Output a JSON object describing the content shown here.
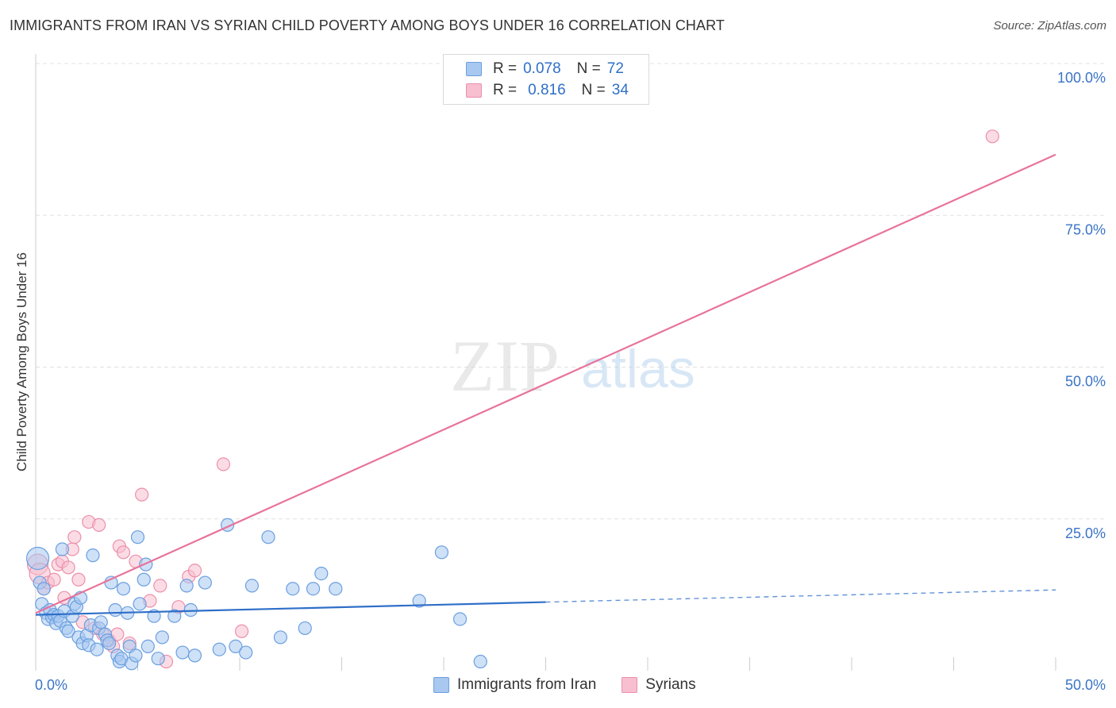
{
  "header": {
    "title": "IMMIGRANTS FROM IRAN VS SYRIAN CHILD POVERTY AMONG BOYS UNDER 16 CORRELATION CHART",
    "source": "Source: ZipAtlas.com"
  },
  "watermark": {
    "zip": "ZIP",
    "atlas": "atlas"
  },
  "colors": {
    "blue_fill": "#a8c8f0",
    "blue_stroke": "#6a9fe0",
    "blue_line": "#2f6fc8",
    "pink_fill": "#f7bfd0",
    "pink_stroke": "#ec8fab",
    "pink_line": "#e8739a",
    "grid": "#e0e0e0",
    "tick_label": "#3a74c6"
  },
  "legend": {
    "series": [
      {
        "r_label": "R =",
        "r_value": "0.078",
        "n_label": "N =",
        "n_value": "72"
      },
      {
        "r_label": "R =",
        "r_value": "0.816",
        "n_label": "N =",
        "n_value": "34"
      }
    ]
  },
  "chart_data": {
    "type": "scatter",
    "title": "IMMIGRANTS FROM IRAN VS SYRIAN CHILD POVERTY AMONG BOYS UNDER 16 CORRELATION CHART",
    "xlabel": "",
    "ylabel": "Child Poverty Among Boys Under 16",
    "xlim": [
      0,
      50
    ],
    "ylim": [
      0,
      100
    ],
    "x_tick_labels": [
      {
        "value": 0,
        "label": "0.0%"
      },
      {
        "value": 50,
        "label": "50.0%"
      }
    ],
    "y_tick_labels": [
      {
        "value": 25,
        "label": "25.0%"
      },
      {
        "value": 50,
        "label": "50.0%"
      },
      {
        "value": 75,
        "label": "75.0%"
      },
      {
        "value": 100,
        "label": "100.0%"
      }
    ],
    "series": [
      {
        "name": "Immigrants from Iran",
        "r": 0.078,
        "n": 72,
        "trend": {
          "solid": [
            [
              0,
              9.2
            ],
            [
              25,
              11.3
            ]
          ],
          "dashed": [
            [
              25,
              11.3
            ],
            [
              50,
              13.3
            ]
          ]
        },
        "points": [
          [
            0.1,
            18.5
          ],
          [
            0.2,
            14.5
          ],
          [
            0.3,
            11.0
          ],
          [
            0.4,
            13.5
          ],
          [
            0.5,
            9.5
          ],
          [
            0.6,
            8.5
          ],
          [
            0.7,
            10.0
          ],
          [
            0.8,
            8.8
          ],
          [
            0.9,
            9.2
          ],
          [
            1.0,
            7.8
          ],
          [
            1.1,
            9.0
          ],
          [
            1.2,
            8.2
          ],
          [
            1.3,
            20.0
          ],
          [
            1.4,
            9.8
          ],
          [
            1.5,
            7.0
          ],
          [
            1.6,
            6.5
          ],
          [
            1.8,
            9.0
          ],
          [
            1.9,
            11.0
          ],
          [
            2.0,
            10.5
          ],
          [
            2.1,
            5.5
          ],
          [
            2.2,
            12.0
          ],
          [
            2.3,
            4.5
          ],
          [
            2.5,
            5.8
          ],
          [
            2.6,
            4.2
          ],
          [
            2.7,
            7.5
          ],
          [
            2.8,
            19.0
          ],
          [
            3.0,
            3.5
          ],
          [
            3.1,
            7.0
          ],
          [
            3.2,
            8.0
          ],
          [
            3.4,
            6.0
          ],
          [
            3.5,
            5.0
          ],
          [
            3.6,
            4.5
          ],
          [
            3.7,
            14.5
          ],
          [
            3.9,
            10.0
          ],
          [
            4.0,
            2.5
          ],
          [
            4.1,
            1.5
          ],
          [
            4.2,
            2.0
          ],
          [
            4.3,
            13.5
          ],
          [
            4.5,
            9.5
          ],
          [
            4.6,
            4.0
          ],
          [
            4.7,
            1.2
          ],
          [
            4.9,
            2.5
          ],
          [
            5.0,
            22.0
          ],
          [
            5.1,
            11.0
          ],
          [
            5.3,
            15.0
          ],
          [
            5.4,
            17.5
          ],
          [
            5.5,
            4.0
          ],
          [
            6.0,
            2.0
          ],
          [
            6.2,
            5.5
          ],
          [
            6.8,
            9.0
          ],
          [
            7.2,
            3.0
          ],
          [
            7.4,
            14.0
          ],
          [
            7.6,
            10.0
          ],
          [
            7.8,
            2.5
          ],
          [
            8.3,
            14.5
          ],
          [
            9.0,
            3.5
          ],
          [
            9.4,
            24.0
          ],
          [
            9.8,
            4.0
          ],
          [
            10.3,
            3.0
          ],
          [
            10.6,
            14.0
          ],
          [
            11.4,
            22.0
          ],
          [
            12.0,
            5.5
          ],
          [
            12.6,
            13.5
          ],
          [
            13.2,
            7.0
          ],
          [
            13.6,
            13.5
          ],
          [
            14.0,
            16.0
          ],
          [
            14.7,
            13.5
          ],
          [
            18.8,
            11.5
          ],
          [
            19.9,
            19.5
          ],
          [
            20.8,
            8.5
          ],
          [
            21.8,
            1.5
          ],
          [
            5.8,
            9.0
          ]
        ]
      },
      {
        "name": "Syrians",
        "r": 0.816,
        "n": 34,
        "trend": {
          "solid": [
            [
              0,
              9.5
            ],
            [
              50,
              85.0
            ]
          ]
        },
        "points": [
          [
            0.1,
            17.5
          ],
          [
            0.2,
            16.0
          ],
          [
            0.4,
            13.5
          ],
          [
            0.6,
            14.5
          ],
          [
            0.9,
            15.0
          ],
          [
            1.1,
            17.5
          ],
          [
            1.3,
            18.0
          ],
          [
            1.4,
            12.0
          ],
          [
            1.6,
            17.0
          ],
          [
            1.8,
            20.0
          ],
          [
            1.9,
            22.0
          ],
          [
            2.1,
            15.0
          ],
          [
            2.3,
            8.0
          ],
          [
            2.6,
            24.5
          ],
          [
            2.9,
            7.0
          ],
          [
            3.1,
            24.0
          ],
          [
            3.3,
            6.0
          ],
          [
            3.6,
            5.0
          ],
          [
            3.8,
            4.0
          ],
          [
            4.0,
            6.0
          ],
          [
            4.1,
            20.5
          ],
          [
            4.3,
            19.5
          ],
          [
            4.6,
            4.5
          ],
          [
            4.9,
            18.0
          ],
          [
            5.2,
            29.0
          ],
          [
            5.6,
            11.5
          ],
          [
            6.1,
            14.0
          ],
          [
            6.4,
            1.5
          ],
          [
            7.0,
            10.5
          ],
          [
            7.5,
            15.5
          ],
          [
            7.8,
            16.5
          ],
          [
            9.2,
            34.0
          ],
          [
            10.1,
            6.5
          ],
          [
            46.9,
            88.0
          ]
        ]
      }
    ]
  },
  "bottom_legend": [
    "Immigrants from Iran",
    "Syrians"
  ]
}
